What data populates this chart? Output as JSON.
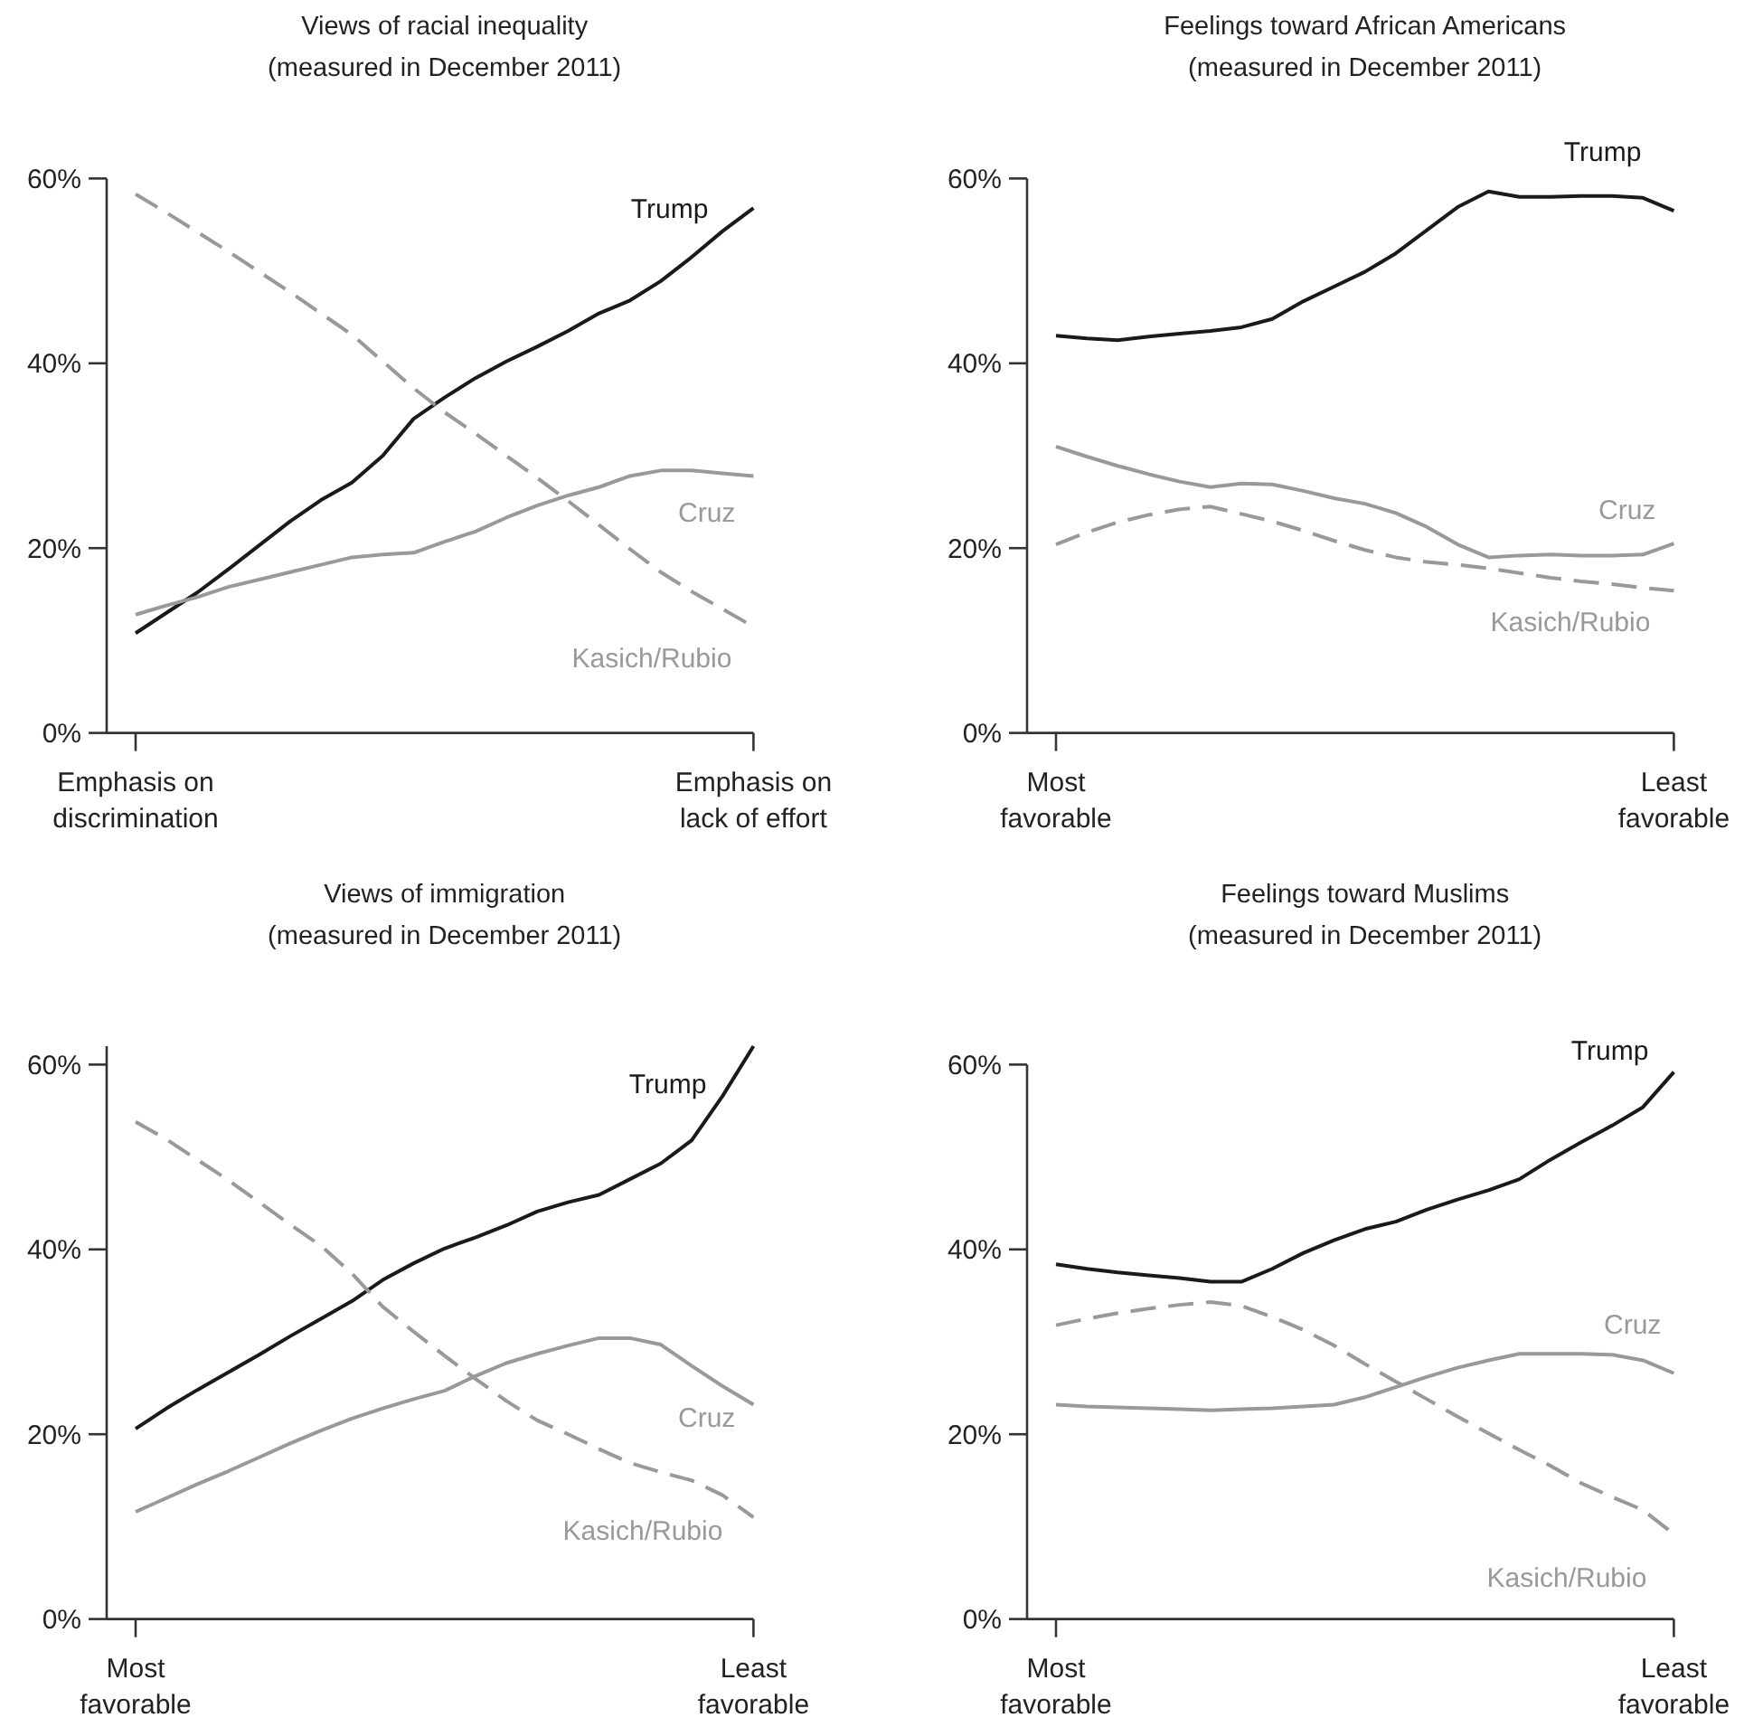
{
  "chart_data": [
    {
      "type": "line",
      "title": "Views of racial inequality",
      "subtitle": "(measured in December 2011)",
      "categories": [
        "Emphasis on\ndiscrimination",
        null,
        null,
        null,
        null,
        null,
        null,
        null,
        null,
        null,
        null,
        null,
        null,
        null,
        null,
        null,
        null,
        null,
        null,
        null,
        "Emphasis on\nlack of effort"
      ],
      "ylim": [
        0,
        60
      ],
      "yticks": [
        {
          "value": 0,
          "label": "0%"
        },
        {
          "value": 20,
          "label": "20%"
        },
        {
          "value": 40,
          "label": "40%"
        },
        {
          "value": 60,
          "label": "60%"
        }
      ],
      "series": [
        {
          "name": "Trump",
          "color": "#1a1a1a",
          "line_style": "solid",
          "values": [
            10.8,
            13.0,
            15.2,
            17.7,
            20.3,
            22.9,
            25.2,
            27.1,
            30.0,
            34.0,
            36.3,
            38.4,
            40.2,
            41.8,
            43.5,
            45.4,
            46.8,
            48.9,
            51.5,
            54.3,
            56.8
          ]
        },
        {
          "name": "Cruz",
          "color": "#999999",
          "line_style": "solid",
          "values": [
            12.8,
            13.8,
            14.7,
            15.8,
            16.6,
            17.4,
            18.2,
            19.0,
            19.3,
            19.5,
            20.7,
            21.8,
            23.3,
            24.6,
            25.7,
            26.6,
            27.8,
            28.4,
            28.4,
            28.1,
            27.8
          ]
        },
        {
          "name": "Kasich/Rubio",
          "color": "#999999",
          "line_style": "dashed",
          "values": [
            58.3,
            56.3,
            54.2,
            52.1,
            49.9,
            47.7,
            45.4,
            43.1,
            40.2,
            37.3,
            34.7,
            32.4,
            30.0,
            27.6,
            25.1,
            22.5,
            19.9,
            17.4,
            15.3,
            13.4,
            11.5
          ]
        }
      ]
    },
    {
      "type": "line",
      "title": "Feelings toward African Americans",
      "subtitle": "(measured in December 2011)",
      "categories": [
        "Most\nfavorable",
        null,
        null,
        null,
        null,
        null,
        null,
        null,
        null,
        null,
        null,
        null,
        null,
        null,
        null,
        null,
        null,
        null,
        null,
        null,
        "Least\nfavorable"
      ],
      "ylim": [
        0,
        60
      ],
      "yticks": [
        {
          "value": 0,
          "label": "0%"
        },
        {
          "value": 20,
          "label": "20%"
        },
        {
          "value": 40,
          "label": "40%"
        },
        {
          "value": 60,
          "label": "60%"
        }
      ],
      "series": [
        {
          "name": "Trump",
          "color": "#1a1a1a",
          "line_style": "solid",
          "values": [
            43.0,
            42.7,
            42.5,
            42.9,
            43.2,
            43.5,
            43.9,
            44.8,
            46.7,
            48.3,
            49.9,
            51.9,
            54.4,
            56.9,
            58.6,
            58.0,
            58.0,
            58.1,
            58.1,
            57.9,
            56.5
          ]
        },
        {
          "name": "Cruz",
          "color": "#999999",
          "line_style": "solid",
          "values": [
            31.0,
            29.9,
            28.9,
            28.0,
            27.2,
            26.6,
            27.0,
            26.9,
            26.2,
            25.4,
            24.8,
            23.8,
            22.3,
            20.4,
            19.0,
            19.2,
            19.3,
            19.2,
            19.2,
            19.3,
            20.5
          ]
        },
        {
          "name": "Kasich/Rubio",
          "color": "#999999",
          "line_style": "dashed",
          "values": [
            20.4,
            21.7,
            22.8,
            23.6,
            24.2,
            24.5,
            23.7,
            22.9,
            21.9,
            20.8,
            19.8,
            19.0,
            18.5,
            18.2,
            17.8,
            17.3,
            16.8,
            16.4,
            16.1,
            15.7,
            15.4
          ]
        }
      ]
    },
    {
      "type": "line",
      "title": "Views of immigration",
      "subtitle": "(measured in December 2011)",
      "categories": [
        "Most\nfavorable",
        null,
        null,
        null,
        null,
        null,
        null,
        null,
        null,
        null,
        null,
        null,
        null,
        null,
        null,
        null,
        null,
        null,
        null,
        null,
        "Least\nfavorable"
      ],
      "ylim": [
        0,
        62
      ],
      "yticks": [
        {
          "value": 0,
          "label": "0%"
        },
        {
          "value": 20,
          "label": "20%"
        },
        {
          "value": 40,
          "label": "40%"
        },
        {
          "value": 60,
          "label": "60%"
        }
      ],
      "series": [
        {
          "name": "Trump",
          "color": "#1a1a1a",
          "line_style": "solid",
          "values": [
            20.6,
            22.8,
            24.8,
            26.7,
            28.6,
            30.6,
            32.5,
            34.4,
            36.7,
            38.5,
            40.1,
            41.3,
            42.6,
            44.1,
            45.1,
            45.9,
            47.6,
            49.3,
            51.8,
            56.6,
            62.0
          ]
        },
        {
          "name": "Cruz",
          "color": "#999999",
          "line_style": "solid",
          "values": [
            11.6,
            13.1,
            14.6,
            16.0,
            17.5,
            19.0,
            20.4,
            21.7,
            22.8,
            23.8,
            24.7,
            26.3,
            27.7,
            28.7,
            29.6,
            30.4,
            30.4,
            29.7,
            27.4,
            25.2,
            23.2
          ]
        },
        {
          "name": "Kasich/Rubio",
          "color": "#999999",
          "line_style": "dashed",
          "values": [
            53.8,
            51.9,
            49.7,
            47.5,
            45.1,
            42.7,
            40.4,
            37.4,
            33.8,
            31.1,
            28.5,
            26.0,
            23.6,
            21.5,
            20.0,
            18.4,
            16.9,
            15.9,
            15.0,
            13.4,
            11.0
          ]
        }
      ]
    },
    {
      "type": "line",
      "title": "Feelings toward Muslims",
      "subtitle": "(measured in December 2011)",
      "categories": [
        "Most\nfavorable",
        null,
        null,
        null,
        null,
        null,
        null,
        null,
        null,
        null,
        null,
        null,
        null,
        null,
        null,
        null,
        null,
        null,
        null,
        null,
        "Least\nfavorable"
      ],
      "ylim": [
        0,
        60
      ],
      "yticks": [
        {
          "value": 0,
          "label": "0%"
        },
        {
          "value": 20,
          "label": "20%"
        },
        {
          "value": 40,
          "label": "40%"
        },
        {
          "value": 60,
          "label": "60%"
        }
      ],
      "series": [
        {
          "name": "Trump",
          "color": "#1a1a1a",
          "line_style": "solid",
          "values": [
            38.4,
            37.9,
            37.5,
            37.2,
            36.9,
            36.5,
            36.5,
            37.9,
            39.6,
            41.0,
            42.2,
            43.0,
            44.3,
            45.4,
            46.4,
            47.6,
            49.7,
            51.6,
            53.4,
            55.4,
            59.2
          ]
        },
        {
          "name": "Cruz",
          "color": "#999999",
          "line_style": "solid",
          "values": [
            23.2,
            23.0,
            22.9,
            22.8,
            22.7,
            22.6,
            22.7,
            22.8,
            23.0,
            23.2,
            24.0,
            25.1,
            26.2,
            27.2,
            28.0,
            28.7,
            28.7,
            28.7,
            28.6,
            28.0,
            26.6
          ]
        },
        {
          "name": "Kasich/Rubio",
          "color": "#999999",
          "line_style": "dashed",
          "values": [
            31.8,
            32.5,
            33.1,
            33.6,
            34.0,
            34.3,
            33.9,
            32.7,
            31.3,
            29.6,
            27.6,
            25.7,
            23.8,
            21.9,
            20.1,
            18.3,
            16.6,
            14.7,
            13.2,
            11.8,
            9.2
          ]
        }
      ]
    }
  ]
}
